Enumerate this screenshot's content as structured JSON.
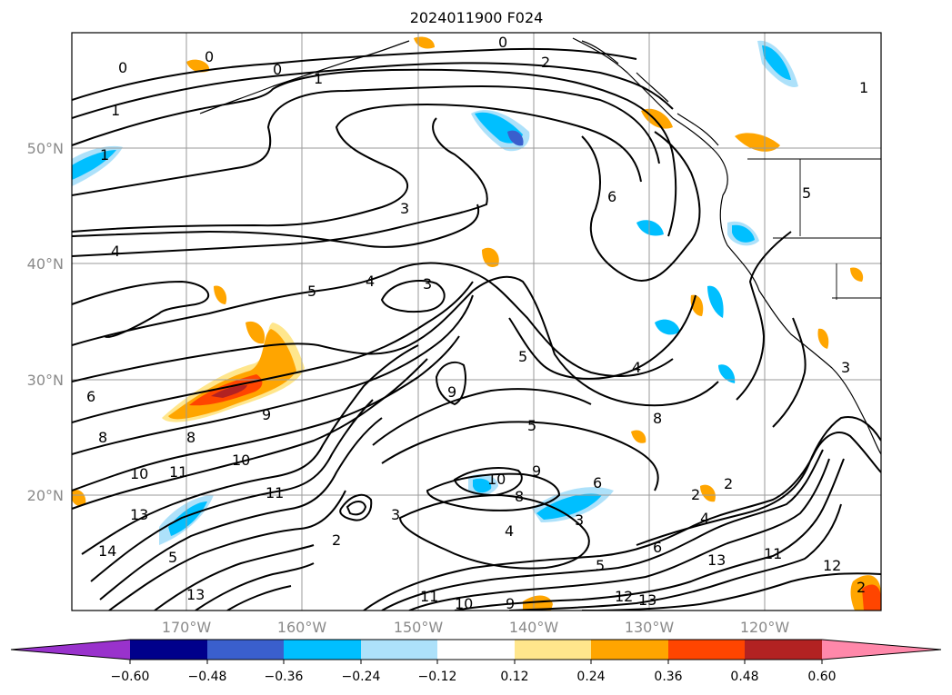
{
  "title": "2024011900 F024",
  "lat_labels": [
    "50°N",
    "40°N",
    "30°N",
    "20°N"
  ],
  "lon_labels": [
    "170°W",
    "160°W",
    "150°W",
    "140°W",
    "130°W",
    "120°W"
  ],
  "colorbar": {
    "ticks": [
      "−0.60",
      "−0.48",
      "−0.36",
      "−0.24",
      "−0.12",
      "0.12",
      "0.24",
      "0.36",
      "0.48",
      "0.60"
    ],
    "colors": [
      "#9932CC",
      "#00008B",
      "#3A5FCD",
      "#00BFFF",
      "#ADE1FA",
      "#FFFFFF",
      "#FFE68C",
      "#FFA500",
      "#FF4500",
      "#B22222",
      "#FF88AA"
    ]
  },
  "contour_labels": [
    "0",
    "0",
    "0",
    "0",
    "1",
    "1",
    "1",
    "1",
    "2",
    "2",
    "2",
    "3",
    "3",
    "3",
    "3",
    "3",
    "4",
    "4",
    "4",
    "4",
    "4",
    "5",
    "5",
    "5",
    "5",
    "5",
    "5",
    "6",
    "6",
    "6",
    "6",
    "8",
    "8",
    "8",
    "8",
    "9",
    "9",
    "9",
    "9",
    "10",
    "10",
    "10",
    "10",
    "11",
    "11",
    "11",
    "11",
    "12",
    "12",
    "13",
    "13",
    "13",
    "13",
    "14",
    "2",
    "2"
  ]
}
